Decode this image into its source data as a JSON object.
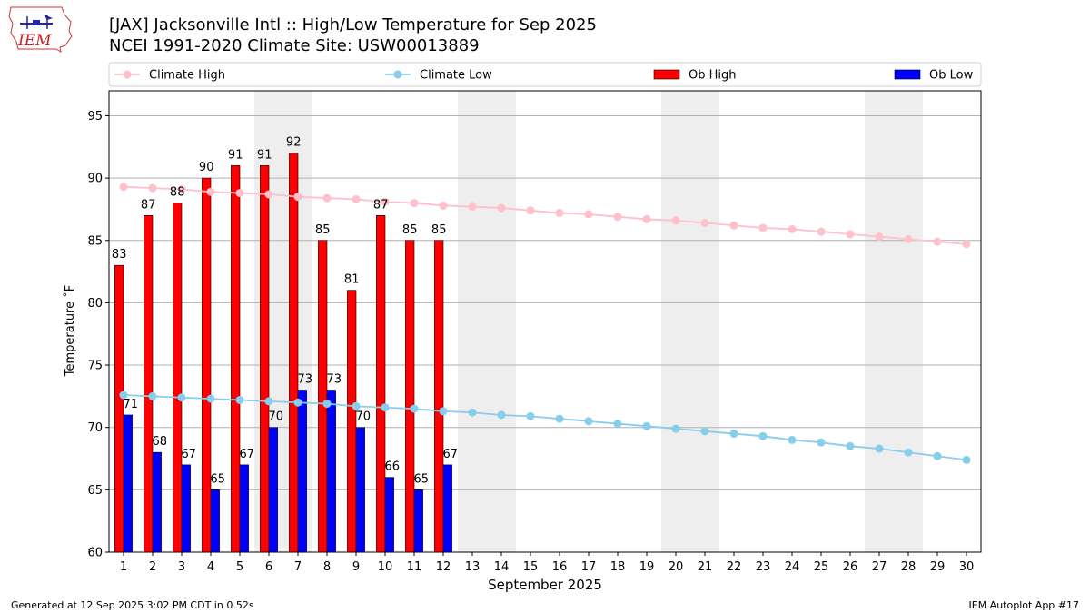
{
  "header": {
    "title_line1": "[JAX] Jacksonville Intl :: High/Low Temperature for Sep 2025",
    "title_line2": "NCEI 1991-2020 Climate Site: USW00013889"
  },
  "logo": {
    "text": "IEM",
    "icon": "iowa-state-map-logo"
  },
  "footer": {
    "generated": "Generated at 12 Sep 2025 3:02 PM CDT in 0.52s",
    "app": "IEM Autoplot App #17"
  },
  "colors": {
    "climate_high": "#ffc0cb",
    "climate_low": "#87ceeb",
    "ob_high": "#ff0000",
    "ob_low": "#0000ff",
    "weekend_shade": "#eeeeee",
    "grid": "#b0b0b0"
  },
  "chart_data": {
    "type": "bar",
    "xlabel": "September 2025",
    "ylabel": "Temperature ˚F",
    "xlim": [
      0.5,
      30.5
    ],
    "ylim": [
      60,
      97
    ],
    "yticks": [
      60,
      65,
      70,
      75,
      80,
      85,
      90,
      95
    ],
    "grid": "horizontal",
    "legend_placement": "top",
    "weekend_shading": [
      [
        6,
        7
      ],
      [
        13,
        14
      ],
      [
        20,
        21
      ],
      [
        27,
        28
      ]
    ],
    "days": [
      1,
      2,
      3,
      4,
      5,
      6,
      7,
      8,
      9,
      10,
      11,
      12,
      13,
      14,
      15,
      16,
      17,
      18,
      19,
      20,
      21,
      22,
      23,
      24,
      25,
      26,
      27,
      28,
      29,
      30
    ],
    "series": [
      {
        "name": "Climate High",
        "kind": "line",
        "values": [
          89.3,
          89.2,
          89.1,
          88.9,
          88.8,
          88.7,
          88.5,
          88.4,
          88.3,
          88.1,
          88.0,
          87.8,
          87.7,
          87.6,
          87.4,
          87.2,
          87.1,
          86.9,
          86.7,
          86.6,
          86.4,
          86.2,
          86.0,
          85.9,
          85.7,
          85.5,
          85.3,
          85.1,
          84.9,
          84.7
        ]
      },
      {
        "name": "Climate Low",
        "kind": "line",
        "values": [
          72.6,
          72.5,
          72.4,
          72.3,
          72.2,
          72.1,
          72.0,
          71.9,
          71.7,
          71.6,
          71.5,
          71.3,
          71.2,
          71.0,
          70.9,
          70.7,
          70.5,
          70.3,
          70.1,
          69.9,
          69.7,
          69.5,
          69.3,
          69.0,
          68.8,
          68.5,
          68.3,
          68.0,
          67.7,
          67.4
        ]
      },
      {
        "name": "Ob High",
        "kind": "bar",
        "values": [
          83,
          87,
          88,
          90,
          91,
          91,
          92,
          85,
          81,
          87,
          85,
          85
        ]
      },
      {
        "name": "Ob Low",
        "kind": "bar",
        "values": [
          71,
          68,
          67,
          65,
          67,
          70,
          73,
          73,
          70,
          66,
          65,
          67
        ]
      }
    ]
  }
}
